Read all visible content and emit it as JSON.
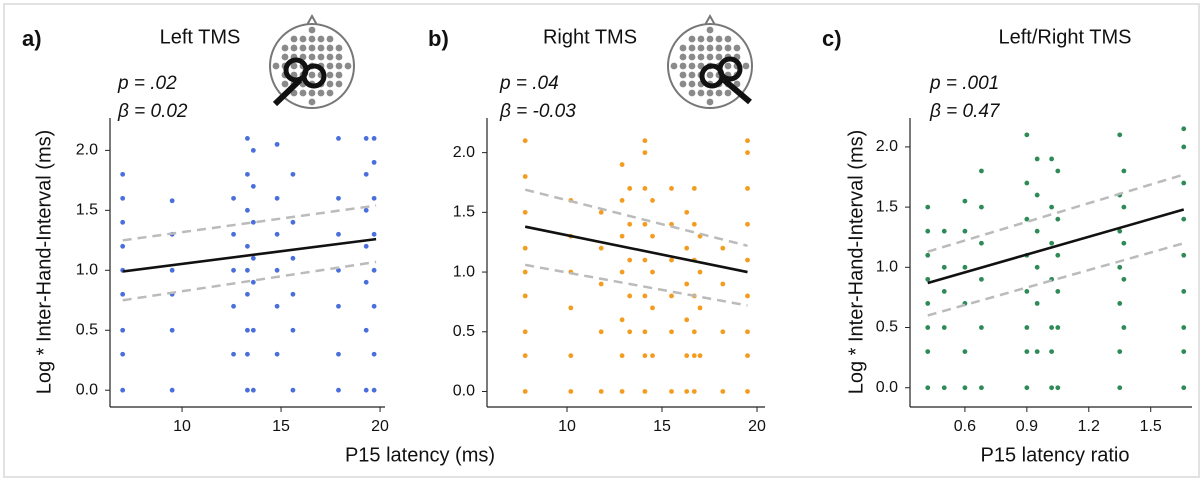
{
  "chart_data": [
    {
      "type": "scatter",
      "panel_label": "a)",
      "title": "Left TMS",
      "annotations": [
        "p = .02",
        "β = 0.02"
      ],
      "x_label": "P15 latency (ms)",
      "y_label": "Log * Inter-Hand-Interval (ms)",
      "color": "#4a6fdc",
      "xlim": [
        6.36,
        20.25
      ],
      "ylim": [
        -0.14,
        2.27
      ],
      "xticks": [
        10,
        15,
        20
      ],
      "yticks": [
        {
          "value": 0,
          "label": "0.0"
        },
        {
          "value": 0.5,
          "label": "0.5"
        },
        {
          "value": 1,
          "label": "1.0"
        },
        {
          "value": 1.5,
          "label": "1.5"
        },
        {
          "value": 2,
          "label": "2.0"
        }
      ],
      "x": [
        7,
        7,
        7,
        7,
        7,
        7,
        7,
        7,
        7,
        9.5,
        9.5,
        9.5,
        9.5,
        9.5,
        9.5,
        12.6,
        12.6,
        12.6,
        12.6,
        12.6,
        13.3,
        13.3,
        13.3,
        13.3,
        13.3,
        13.3,
        13.3,
        13.3,
        13.3,
        13.6,
        13.6,
        13.6,
        13.6,
        13.6,
        13.6,
        13.6,
        14.8,
        14.8,
        14.8,
        14.8,
        14.8,
        14.8,
        15.6,
        15.6,
        15.6,
        15.6,
        15.6,
        15.6,
        17.9,
        17.9,
        17.9,
        17.9,
        17.9,
        17.9,
        17.9,
        19.3,
        19.3,
        19.3,
        19.3,
        19.3,
        19.3,
        19.3,
        19.7,
        19.7,
        19.7,
        19.7,
        19.7,
        19.7,
        19.7,
        19.7
      ],
      "y": [
        0,
        0.3,
        0.5,
        0.8,
        1.0,
        1.2,
        1.4,
        1.6,
        1.8,
        0,
        0.5,
        0.8,
        1.0,
        1.3,
        1.58,
        0.3,
        0.7,
        1.0,
        1.3,
        1.6,
        0,
        0.3,
        0.5,
        0.8,
        1.0,
        1.2,
        1.5,
        1.8,
        2.1,
        0,
        0.5,
        0.9,
        1.1,
        1.4,
        1.7,
        2.0,
        0.3,
        0.7,
        1.0,
        1.3,
        1.6,
        2.05,
        0,
        0.5,
        0.8,
        1.1,
        1.4,
        1.8,
        0,
        0.3,
        0.7,
        1.0,
        1.3,
        1.6,
        2.1,
        0,
        0.5,
        0.9,
        1.2,
        1.5,
        1.8,
        2.1,
        0,
        0.3,
        0.7,
        1.0,
        1.3,
        1.6,
        1.9,
        2.1
      ],
      "fit": {
        "x": [
          7,
          19.8
        ],
        "y": [
          0.99,
          1.26
        ]
      },
      "ci_upper": {
        "x": [
          7,
          19.8
        ],
        "y": [
          1.25,
          1.54
        ]
      },
      "ci_lower": {
        "x": [
          7,
          19.8
        ],
        "y": [
          0.75,
          1.07
        ]
      }
    },
    {
      "type": "scatter",
      "panel_label": "b)",
      "title": "Right TMS",
      "annotations": [
        "p = .04",
        "β = -0.03"
      ],
      "color": "#f39c1f",
      "xlim": [
        5.79,
        20.42
      ],
      "ylim": [
        -0.13,
        2.29
      ],
      "xticks": [
        10,
        15,
        20
      ],
      "yticks": [
        {
          "value": 0,
          "label": "0.0"
        },
        {
          "value": 0.5,
          "label": "0.5"
        },
        {
          "value": 1,
          "label": "1.0"
        },
        {
          "value": 1.5,
          "label": "1.5"
        },
        {
          "value": 2,
          "label": "2.0"
        }
      ],
      "x": [
        7.8,
        7.8,
        7.8,
        7.8,
        7.8,
        7.8,
        7.8,
        7.8,
        7.8,
        10.2,
        10.2,
        10.2,
        10.2,
        10.2,
        10.2,
        11.8,
        11.8,
        11.8,
        11.8,
        11.8,
        12.9,
        12.9,
        12.9,
        12.9,
        12.9,
        12.9,
        12.9,
        13.3,
        13.3,
        13.3,
        13.3,
        13.3,
        14.1,
        14.1,
        14.1,
        14.1,
        14.1,
        14.1,
        14.1,
        14.1,
        14.1,
        14.5,
        14.5,
        14.5,
        14.5,
        14.5,
        15.5,
        15.5,
        15.5,
        15.5,
        15.5,
        15.5,
        16.3,
        16.3,
        16.3,
        16.3,
        16.3,
        16.3,
        16.7,
        16.7,
        16.7,
        16.7,
        16.7,
        16.7,
        16.7,
        17,
        17,
        17,
        17,
        18.2,
        18.2,
        18.2,
        18.2,
        19.5,
        19.5,
        19.5,
        19.5,
        19.5,
        19.5,
        19.5,
        19.5,
        19.5
      ],
      "y": [
        0,
        0.3,
        0.5,
        0.8,
        1.0,
        1.2,
        1.5,
        1.8,
        2.1,
        0,
        0.3,
        0.7,
        1.0,
        1.3,
        1.6,
        0,
        0.5,
        0.9,
        1.2,
        1.5,
        0,
        0.3,
        0.6,
        1.0,
        1.3,
        1.6,
        1.9,
        0.5,
        0.8,
        1.1,
        1.4,
        1.7,
        0,
        0.3,
        0.5,
        0.8,
        1.1,
        1.4,
        1.7,
        2.0,
        2.1,
        0.3,
        0.7,
        1.0,
        1.3,
        1.6,
        0,
        0.5,
        0.8,
        1.1,
        1.4,
        1.7,
        0,
        0.3,
        0.6,
        0.9,
        1.2,
        1.5,
        0,
        0.3,
        0.5,
        0.8,
        1.1,
        1.4,
        1.7,
        0.3,
        0.7,
        1.0,
        1.3,
        0,
        0.5,
        0.9,
        1.2,
        0,
        0.3,
        0.5,
        0.8,
        1.1,
        1.4,
        1.7,
        2.0,
        2.1
      ],
      "fit": {
        "x": [
          7.8,
          19.5
        ],
        "y": [
          1.38,
          1.0
        ]
      },
      "ci_upper": {
        "x": [
          7.8,
          19.5
        ],
        "y": [
          1.69,
          1.22
        ]
      },
      "ci_lower": {
        "x": [
          7.8,
          19.5
        ],
        "y": [
          1.06,
          0.72
        ]
      }
    },
    {
      "type": "scatter",
      "panel_label": "c)",
      "title": "Left/Right TMS",
      "annotations": [
        "p = .001",
        "β = 0.47"
      ],
      "x_label": "P15 latency ratio",
      "y_label": "Log * Inter-Hand-Interval (ms)",
      "color": "#2e8b57",
      "xlim": [
        0.334,
        1.7
      ],
      "ylim": [
        -0.16,
        2.24
      ],
      "xticks": [
        0.6,
        0.9,
        1.2,
        1.5
      ],
      "yticks": [
        {
          "value": 0,
          "label": "0.0"
        },
        {
          "value": 0.5,
          "label": "0.5"
        },
        {
          "value": 1,
          "label": "1.0"
        },
        {
          "value": 1.5,
          "label": "1.5"
        },
        {
          "value": 2,
          "label": "2.0"
        }
      ],
      "x": [
        0.42,
        0.42,
        0.42,
        0.42,
        0.42,
        0.42,
        0.42,
        0.42,
        0.5,
        0.5,
        0.5,
        0.5,
        0.5,
        0.6,
        0.6,
        0.6,
        0.6,
        0.6,
        0.6,
        0.68,
        0.68,
        0.68,
        0.68,
        0.68,
        0.68,
        0.9,
        0.9,
        0.9,
        0.9,
        0.9,
        0.9,
        0.9,
        0.9,
        0.95,
        0.95,
        0.95,
        0.95,
        0.95,
        0.95,
        1.02,
        1.02,
        1.02,
        1.02,
        1.02,
        1.02,
        1.02,
        1.05,
        1.05,
        1.05,
        1.05,
        1.05,
        1.05,
        1.35,
        1.35,
        1.35,
        1.35,
        1.35,
        1.35,
        1.35,
        1.37,
        1.37,
        1.37,
        1.37,
        1.37,
        1.66,
        1.66,
        1.66,
        1.66,
        1.66,
        1.66,
        1.66,
        1.66,
        1.66
      ],
      "y": [
        0,
        0.3,
        0.5,
        0.7,
        0.9,
        1.1,
        1.3,
        1.5,
        0,
        0.5,
        0.8,
        1.0,
        1.3,
        0,
        0.3,
        0.7,
        1.0,
        1.3,
        1.55,
        0,
        0.5,
        0.9,
        1.2,
        1.5,
        1.8,
        0,
        0.3,
        0.5,
        0.8,
        1.1,
        1.4,
        1.7,
        2.1,
        0.3,
        0.7,
        1.0,
        1.3,
        1.6,
        1.9,
        0,
        0.3,
        0.5,
        0.9,
        1.2,
        1.5,
        1.9,
        0,
        0.5,
        0.8,
        1.1,
        1.4,
        1.8,
        0,
        0.3,
        0.7,
        1.0,
        1.3,
        1.6,
        2.1,
        0.5,
        0.9,
        1.2,
        1.5,
        1.8,
        0,
        0.3,
        0.5,
        0.8,
        1.1,
        1.4,
        1.7,
        2.0,
        2.15
      ],
      "fit": {
        "x": [
          0.42,
          1.66
        ],
        "y": [
          0.87,
          1.48
        ]
      },
      "ci_upper": {
        "x": [
          0.42,
          1.66
        ],
        "y": [
          1.13,
          1.77
        ]
      },
      "ci_lower": {
        "x": [
          0.42,
          1.66
        ],
        "y": [
          0.6,
          1.2
        ]
      }
    }
  ]
}
